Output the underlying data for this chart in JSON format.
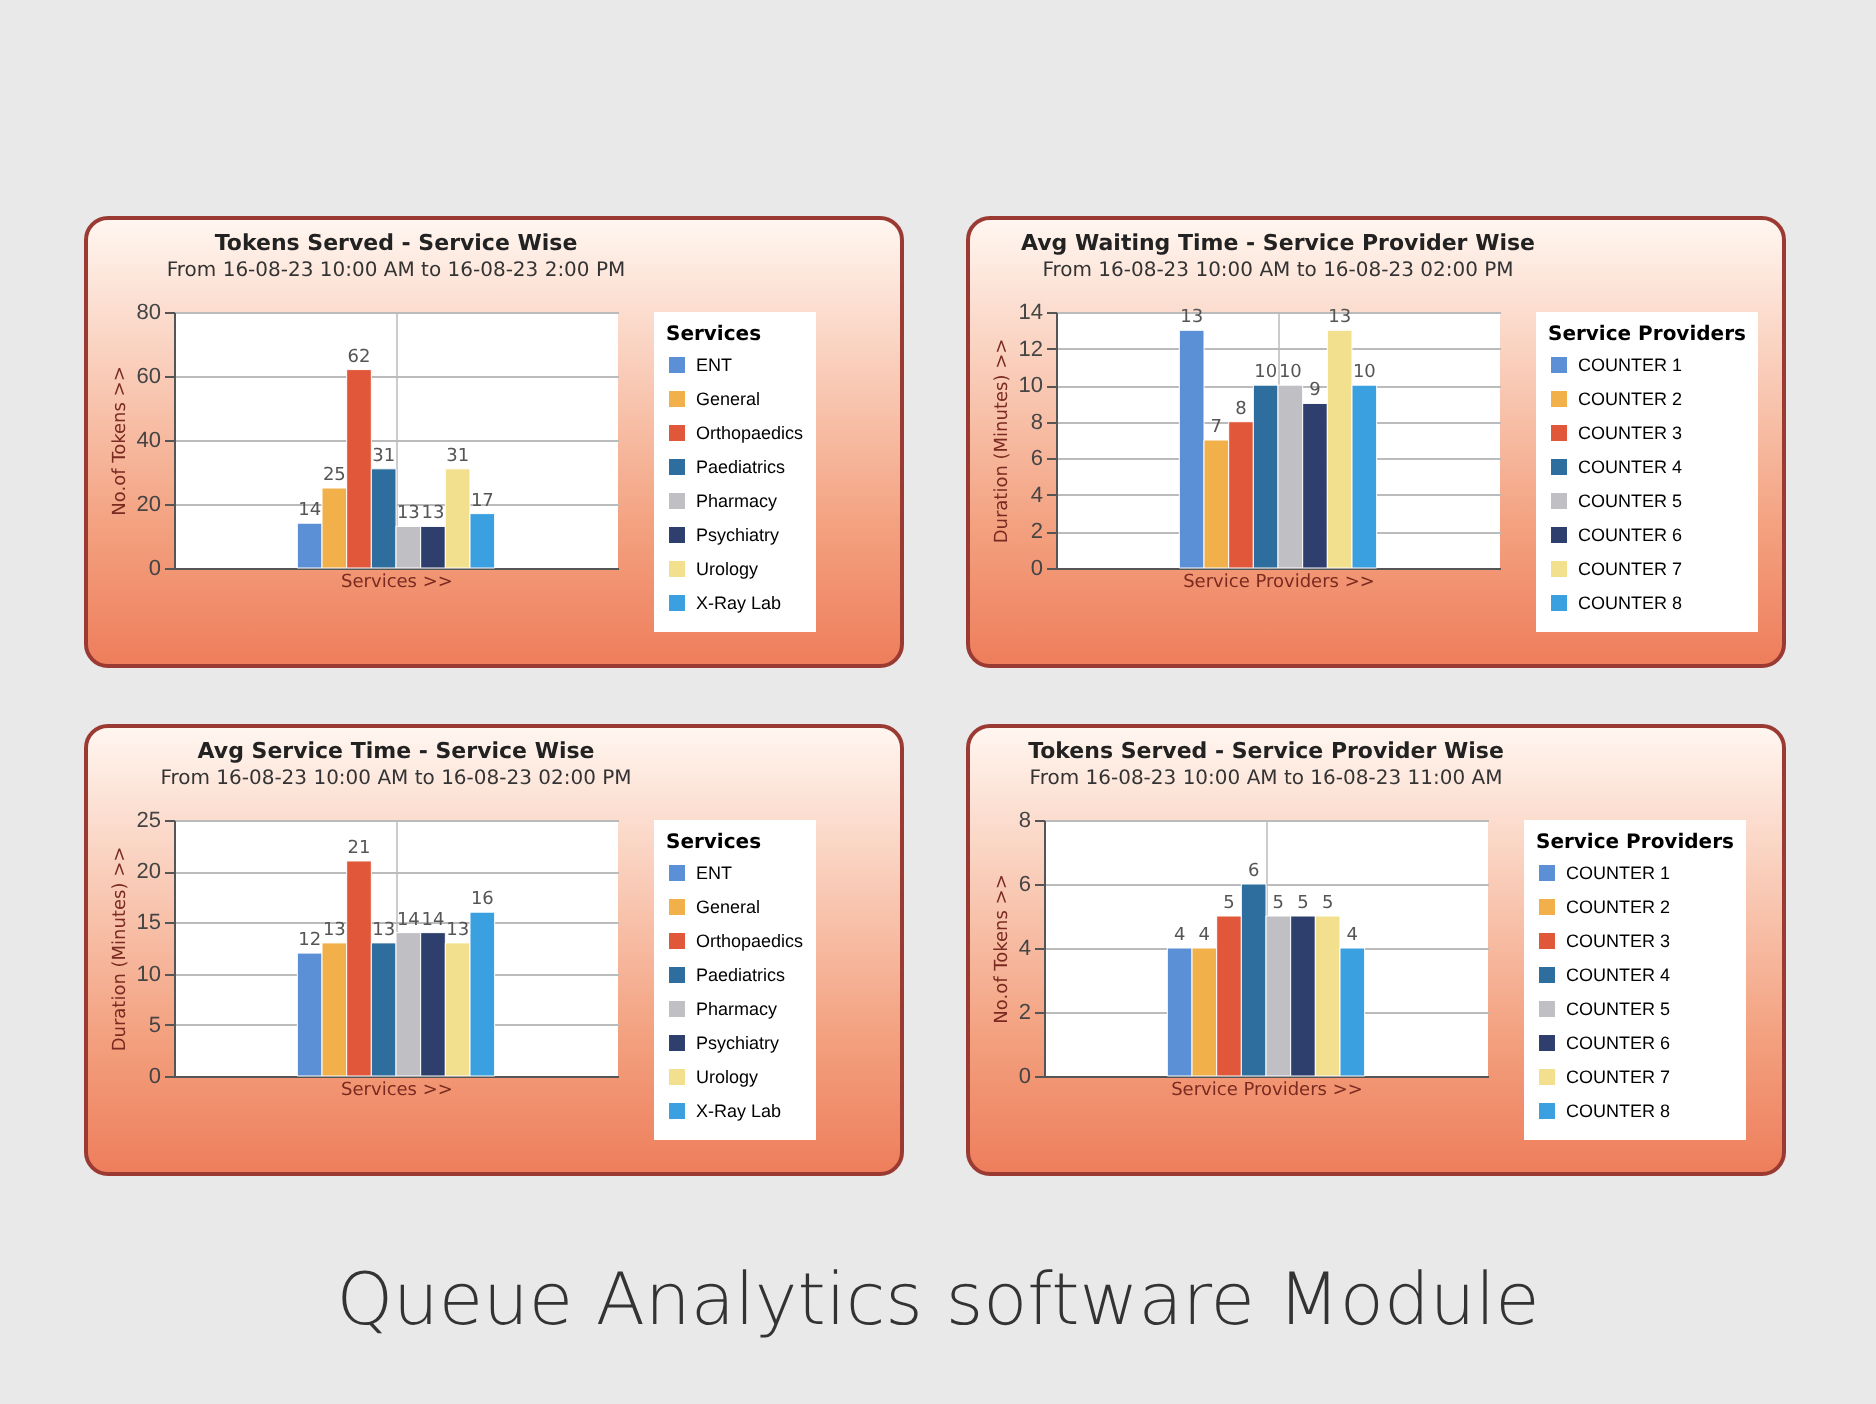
{
  "chart_data": [
    {
      "type": "bar",
      "title": "Tokens Served - Service Wise",
      "subtitle": "From 16-08-23 10:00 AM to 16-08-23 2:00 PM",
      "xlabel": "Services >>",
      "ylabel": "No.of Tokens >>",
      "legend_title": "Services",
      "categories": [
        null
      ],
      "ylim": [
        0,
        80
      ],
      "yticks": [
        0,
        20,
        40,
        60,
        80
      ],
      "grid": true,
      "legend": "right",
      "data_labels": true,
      "series": [
        {
          "name": "ENT",
          "color": "#5b8fd6",
          "values": [
            14
          ]
        },
        {
          "name": "General",
          "color": "#f2b04a",
          "values": [
            25
          ]
        },
        {
          "name": "Orthopaedics",
          "color": "#e0573a",
          "values": [
            62
          ]
        },
        {
          "name": "Paediatrics",
          "color": "#2e6e9e",
          "values": [
            31
          ]
        },
        {
          "name": "Pharmacy",
          "color": "#c0c0c4",
          "values": [
            13
          ]
        },
        {
          "name": "Psychiatry",
          "color": "#2e3f6e",
          "values": [
            13
          ]
        },
        {
          "name": "Urology",
          "color": "#f3e08e",
          "values": [
            31
          ]
        },
        {
          "name": "X-Ray Lab",
          "color": "#3aa0e0",
          "values": [
            17
          ]
        }
      ]
    },
    {
      "type": "bar",
      "title": "Avg Waiting Time - Service Provider Wise",
      "subtitle": "From 16-08-23 10:00 AM to 16-08-23 02:00 PM",
      "xlabel": "Service Providers >>",
      "ylabel": "Duration (Minutes) >>",
      "legend_title": "Service Providers",
      "categories": [
        null
      ],
      "ylim": [
        0,
        14
      ],
      "yticks": [
        0,
        2,
        4,
        6,
        8,
        10,
        12,
        14
      ],
      "grid": true,
      "legend": "right",
      "data_labels": true,
      "series": [
        {
          "name": "COUNTER 1",
          "color": "#5b8fd6",
          "values": [
            13
          ]
        },
        {
          "name": "COUNTER 2",
          "color": "#f2b04a",
          "values": [
            7
          ]
        },
        {
          "name": "COUNTER 3",
          "color": "#e0573a",
          "values": [
            8
          ]
        },
        {
          "name": "COUNTER 4",
          "color": "#2e6e9e",
          "values": [
            10
          ]
        },
        {
          "name": "COUNTER 5",
          "color": "#c0c0c4",
          "values": [
            10
          ]
        },
        {
          "name": "COUNTER 6",
          "color": "#2e3f6e",
          "values": [
            9
          ]
        },
        {
          "name": "COUNTER 7",
          "color": "#f3e08e",
          "values": [
            13
          ]
        },
        {
          "name": "COUNTER 8",
          "color": "#3aa0e0",
          "values": [
            10
          ]
        }
      ]
    },
    {
      "type": "bar",
      "title": "Avg Service Time - Service Wise",
      "subtitle": "From 16-08-23 10:00 AM to 16-08-23 02:00 PM",
      "xlabel": "Services >>",
      "ylabel": "Duration (Minutes) >>",
      "legend_title": "Services",
      "categories": [
        null
      ],
      "ylim": [
        0,
        25
      ],
      "yticks": [
        0,
        5,
        10,
        15,
        20,
        25
      ],
      "grid": true,
      "legend": "right",
      "data_labels": true,
      "series": [
        {
          "name": "ENT",
          "color": "#5b8fd6",
          "values": [
            12
          ]
        },
        {
          "name": "General",
          "color": "#f2b04a",
          "values": [
            13
          ]
        },
        {
          "name": "Orthopaedics",
          "color": "#e0573a",
          "values": [
            21
          ]
        },
        {
          "name": "Paediatrics",
          "color": "#2e6e9e",
          "values": [
            13
          ]
        },
        {
          "name": "Pharmacy",
          "color": "#c0c0c4",
          "values": [
            14
          ]
        },
        {
          "name": "Psychiatry",
          "color": "#2e3f6e",
          "values": [
            14
          ]
        },
        {
          "name": "Urology",
          "color": "#f3e08e",
          "values": [
            13
          ]
        },
        {
          "name": "X-Ray Lab",
          "color": "#3aa0e0",
          "values": [
            16
          ]
        }
      ]
    },
    {
      "type": "bar",
      "title": "Tokens Served - Service Provider Wise",
      "subtitle": "From 16-08-23 10:00 AM to 16-08-23 11:00 AM",
      "xlabel": "Service Providers >>",
      "ylabel": "No.of Tokens >>",
      "legend_title": "Service Providers",
      "categories": [
        null
      ],
      "ylim": [
        0,
        8
      ],
      "yticks": [
        0,
        2,
        4,
        6,
        8
      ],
      "grid": true,
      "legend": "right",
      "data_labels": true,
      "annotations": [
        "Queue Analytics software Module"
      ],
      "series": [
        {
          "name": "COUNTER 1",
          "color": "#5b8fd6",
          "values": [
            4
          ]
        },
        {
          "name": "COUNTER 2",
          "color": "#f2b04a",
          "values": [
            4
          ]
        },
        {
          "name": "COUNTER 3",
          "color": "#e0573a",
          "values": [
            5
          ]
        },
        {
          "name": "COUNTER 4",
          "color": "#2e6e9e",
          "values": [
            6
          ]
        },
        {
          "name": "COUNTER 5",
          "color": "#c0c0c4",
          "values": [
            5
          ]
        },
        {
          "name": "COUNTER 6",
          "color": "#2e3f6e",
          "values": [
            5
          ]
        },
        {
          "name": "COUNTER 7",
          "color": "#f3e08e",
          "values": [
            5
          ]
        },
        {
          "name": "COUNTER 8",
          "color": "#3aa0e0",
          "values": [
            4
          ]
        }
      ]
    }
  ]
}
